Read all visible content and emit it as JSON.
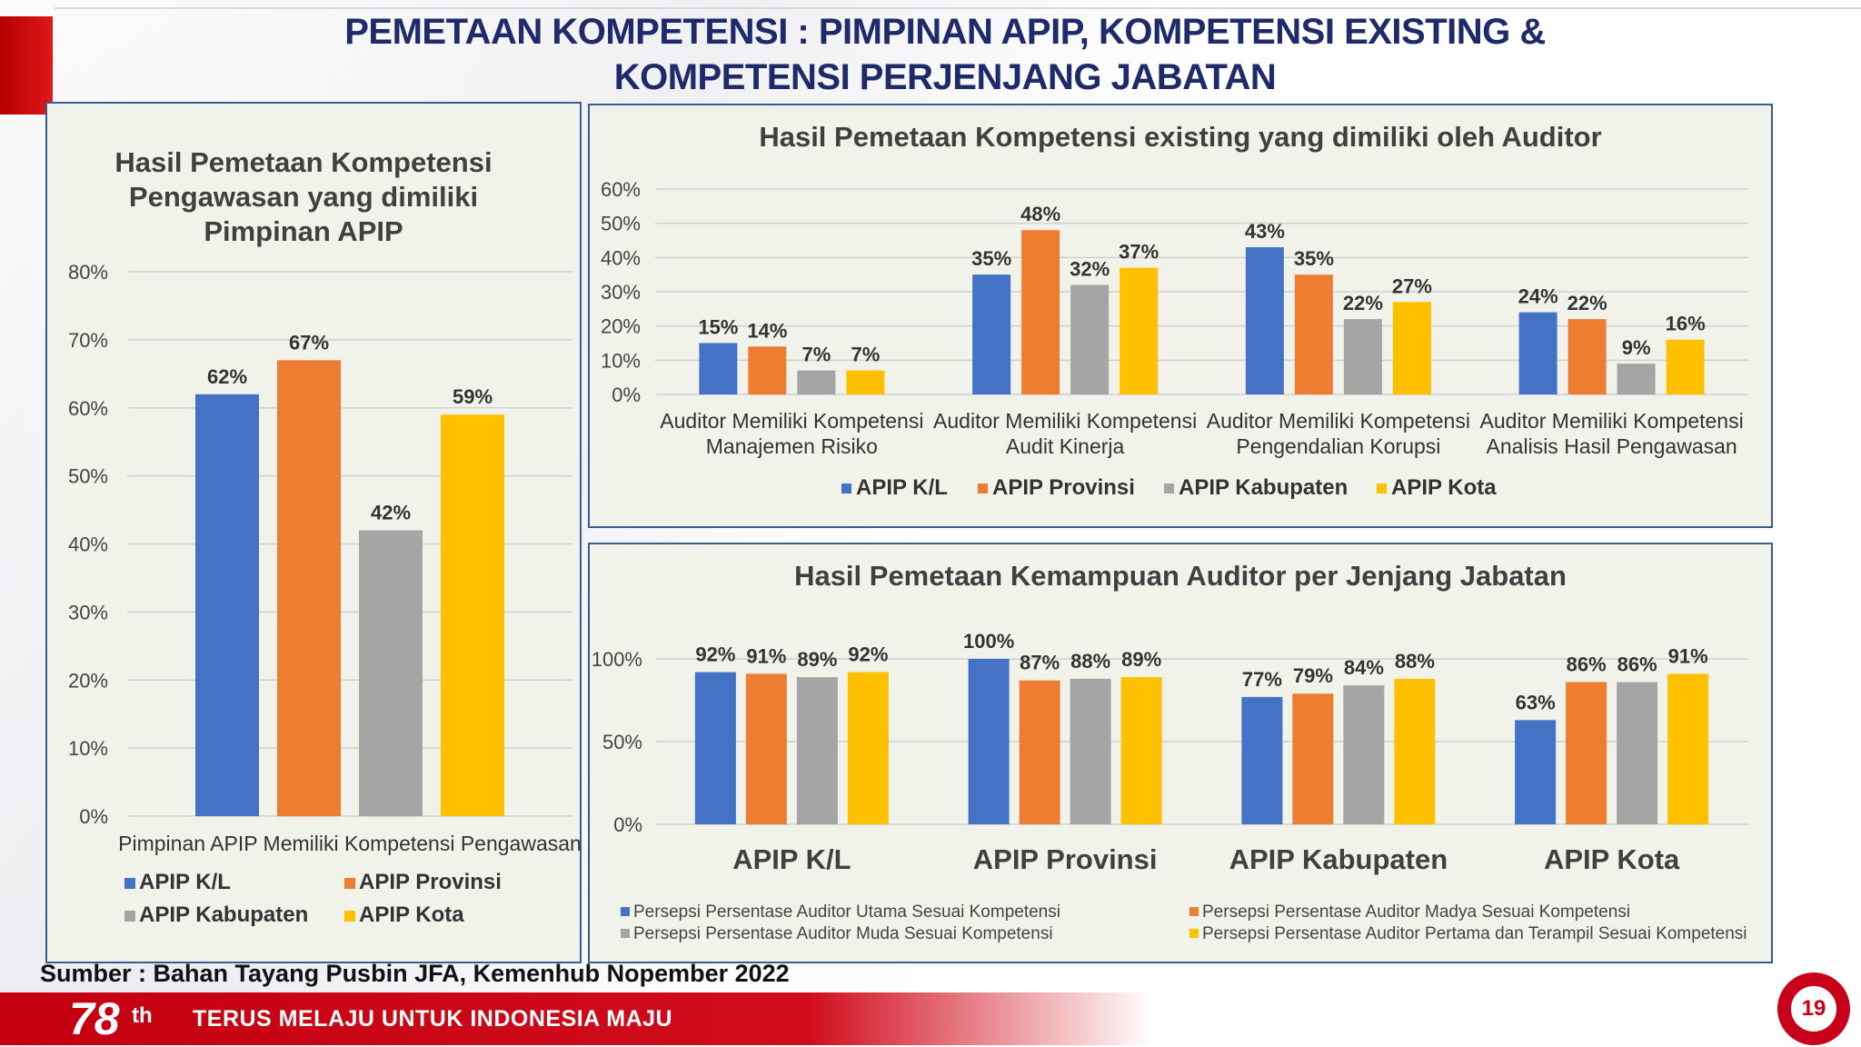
{
  "slide": {
    "title_line1": "PEMETAAN KOMPETENSI : PIMPINAN APIP, KOMPETENSI EXISTING &",
    "title_line2": "KOMPETENSI PERJENJANG JABATAN",
    "source": "Sumber : Bahan Tayang Pusbin JFA, Kemenhub Nopember 2022",
    "footer_number": "78",
    "footer_suffix": "th",
    "footer_slogan": "TERUS MELAJU UNTUK INDONESIA MAJU",
    "page_number": "19"
  },
  "colors": {
    "blue": "#4472c4",
    "orange": "#ed7d31",
    "gray": "#a5a5a5",
    "yellow": "#ffc000",
    "title_navy": "#1f2a6b",
    "footer_red": "#c8001a"
  },
  "chart_data": [
    {
      "type": "bar",
      "title_lines": [
        "Hasil Pemetaan Kompetensi",
        "Pengawasan yang dimiliki",
        "Pimpinan APIP"
      ],
      "categories": [
        "Pimpinan APIP Memiliki Kompetensi Pengawasan"
      ],
      "series": [
        {
          "name": "APIP K/L",
          "values": [
            62
          ],
          "labels": [
            "62%"
          ]
        },
        {
          "name": "APIP Provinsi",
          "values": [
            67
          ],
          "labels": [
            "67%"
          ]
        },
        {
          "name": "APIP Kabupaten",
          "values": [
            42
          ],
          "labels": [
            "42%"
          ]
        },
        {
          "name": "APIP Kota",
          "values": [
            59
          ],
          "labels": [
            "59%"
          ]
        }
      ],
      "ylim": [
        0,
        80
      ],
      "yticks": [
        "0%",
        "10%",
        "20%",
        "30%",
        "40%",
        "50%",
        "60%",
        "70%",
        "80%"
      ],
      "grid": true,
      "legend": "bottom"
    },
    {
      "type": "bar",
      "title": "Hasil Pemetaan Kompetensi existing yang dimiliki oleh Auditor",
      "categories": [
        [
          "Auditor Memiliki Kompetensi",
          "Manajemen Risiko"
        ],
        [
          "Auditor Memiliki Kompetensi",
          "Audit Kinerja"
        ],
        [
          "Auditor Memiliki Kompetensi",
          "Pengendalian Korupsi"
        ],
        [
          "Auditor Memiliki Kompetensi",
          "Analisis Hasil Pengawasan"
        ]
      ],
      "series": [
        {
          "name": "APIP K/L",
          "values": [
            15,
            35,
            43,
            24
          ],
          "labels": [
            "15%",
            "35%",
            "43%",
            "24%"
          ]
        },
        {
          "name": "APIP Provinsi",
          "values": [
            14,
            48,
            35,
            22
          ],
          "labels": [
            "14%",
            "48%",
            "35%",
            "22%"
          ]
        },
        {
          "name": "APIP Kabupaten",
          "values": [
            7,
            32,
            22,
            9
          ],
          "labels": [
            "7%",
            "32%",
            "22%",
            "9%"
          ]
        },
        {
          "name": "APIP Kota",
          "values": [
            7,
            37,
            27,
            16
          ],
          "labels": [
            "7%",
            "37%",
            "27%",
            "16%"
          ]
        }
      ],
      "ylim": [
        0,
        60
      ],
      "yticks": [
        "0%",
        "10%",
        "20%",
        "30%",
        "40%",
        "50%",
        "60%"
      ],
      "grid": true,
      "legend": "bottom"
    },
    {
      "type": "bar",
      "title": "Hasil Pemetaan Kemampuan Auditor per Jenjang Jabatan",
      "categories": [
        "APIP K/L",
        "APIP Provinsi",
        "APIP Kabupaten",
        "APIP Kota"
      ],
      "series": [
        {
          "name": "Persepsi Persentase Auditor Utama Sesuai Kompetensi",
          "values": [
            92,
            100,
            77,
            63
          ],
          "labels": [
            "92%",
            "100%",
            "77%",
            "63%"
          ]
        },
        {
          "name": "Persepsi Persentase Auditor Madya Sesuai Kompetensi",
          "values": [
            91,
            87,
            79,
            86
          ],
          "labels": [
            "91%",
            "87%",
            "79%",
            "86%"
          ]
        },
        {
          "name": "Persepsi Persentase Auditor Muda Sesuai Kompetensi",
          "values": [
            89,
            88,
            84,
            86
          ],
          "labels": [
            "89%",
            "88%",
            "84%",
            "86%"
          ]
        },
        {
          "name": "Persepsi Persentase Auditor Pertama dan Terampil Sesuai Kompetensi",
          "values": [
            92,
            89,
            88,
            91
          ],
          "labels": [
            "92%",
            "89%",
            "88%",
            "91%"
          ]
        }
      ],
      "ylim": [
        0,
        100
      ],
      "yticks": [
        "0%",
        "50%",
        "100%"
      ],
      "grid": true,
      "legend": "bottom"
    }
  ]
}
